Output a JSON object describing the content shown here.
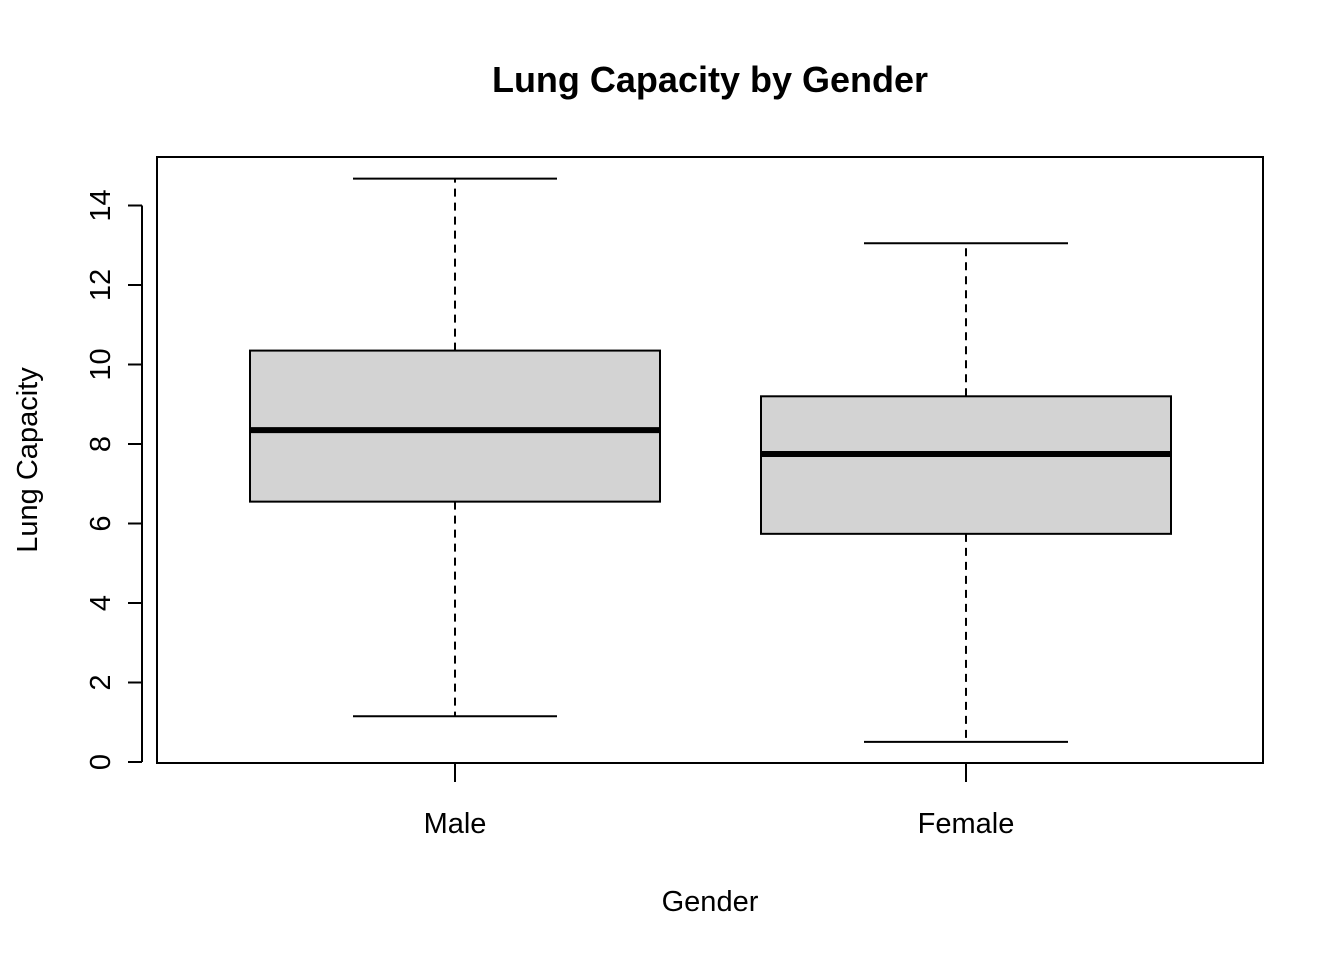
{
  "chart_data": {
    "type": "boxplot",
    "title": "Lung Capacity by Gender",
    "xlabel": "Gender",
    "ylabel": "Lung Capacity",
    "categories": [
      "Male",
      "Female"
    ],
    "boxes": [
      {
        "category": "Male",
        "min": 1.15,
        "q1": 6.55,
        "median": 8.35,
        "q3": 10.35,
        "max": 14.675
      },
      {
        "category": "Female",
        "min": 0.507,
        "q1": 5.74,
        "median": 7.75,
        "q3": 9.2,
        "max": 13.05
      }
    ],
    "yticks": [
      0,
      2,
      4,
      6,
      8,
      10,
      12,
      14
    ],
    "ylim": [
      0,
      15.25
    ],
    "grid": false,
    "legend": "none",
    "colors": {
      "box_fill": "#d3d3d3",
      "stroke": "#000000",
      "background": "#ffffff"
    }
  }
}
